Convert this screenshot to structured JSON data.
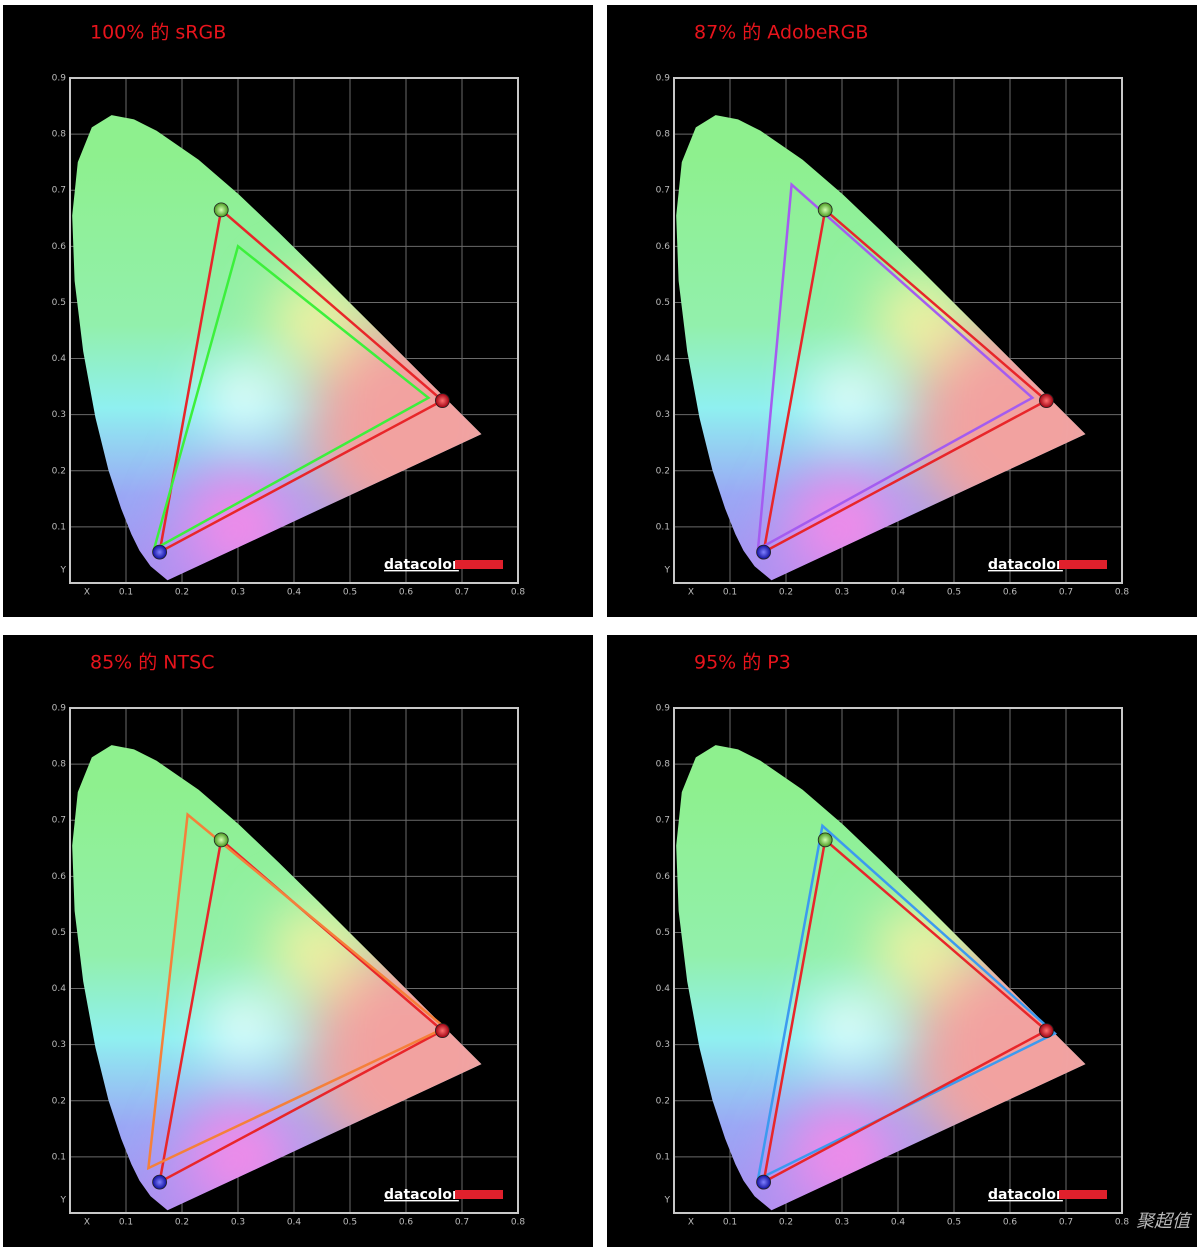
{
  "chart_data": [
    {
      "type": "chromaticity",
      "title": "100% 的 sRGB",
      "xlim": [
        0,
        0.8
      ],
      "ylim": [
        0,
        0.9
      ],
      "xticks": [
        {
          "value": 0,
          "label": "X"
        },
        0.1,
        0.2,
        0.3,
        0.4,
        0.5,
        0.6,
        0.7,
        0.8
      ],
      "yticks": [
        {
          "value": 0,
          "label": "Y"
        },
        0.1,
        0.2,
        0.3,
        0.4,
        0.5,
        0.6,
        0.7,
        0.8,
        0.9
      ],
      "grid": true,
      "brand": "datacolor",
      "series": [
        {
          "color": "#e8262a",
          "x": [
            0.665,
            0.27,
            0.16
          ],
          "y": [
            0.325,
            0.665,
            0.055
          ],
          "markers": true
        },
        {
          "color": "#3cf03c",
          "x": [
            0.64,
            0.3,
            0.15
          ],
          "y": [
            0.33,
            0.6,
            0.06
          ]
        }
      ]
    },
    {
      "type": "chromaticity",
      "title": "87% 的 AdobeRGB",
      "xlim": [
        0,
        0.8
      ],
      "ylim": [
        0,
        0.9
      ],
      "xticks": [
        {
          "value": 0,
          "label": "X"
        },
        0.1,
        0.2,
        0.3,
        0.4,
        0.5,
        0.6,
        0.7,
        0.8
      ],
      "yticks": [
        {
          "value": 0,
          "label": "Y"
        },
        0.1,
        0.2,
        0.3,
        0.4,
        0.5,
        0.6,
        0.7,
        0.8,
        0.9
      ],
      "grid": true,
      "brand": "datacolor",
      "series": [
        {
          "color": "#e8262a",
          "x": [
            0.665,
            0.27,
            0.16
          ],
          "y": [
            0.325,
            0.665,
            0.055
          ],
          "markers": true
        },
        {
          "color": "#a45cf0",
          "x": [
            0.64,
            0.21,
            0.15
          ],
          "y": [
            0.33,
            0.71,
            0.06
          ]
        }
      ]
    },
    {
      "type": "chromaticity",
      "title": "85% 的 NTSC",
      "xlim": [
        0,
        0.8
      ],
      "ylim": [
        0,
        0.9
      ],
      "xticks": [
        {
          "value": 0,
          "label": "X"
        },
        0.1,
        0.2,
        0.3,
        0.4,
        0.5,
        0.6,
        0.7,
        0.8
      ],
      "yticks": [
        {
          "value": 0,
          "label": "Y"
        },
        0.1,
        0.2,
        0.3,
        0.4,
        0.5,
        0.6,
        0.7,
        0.8,
        0.9
      ],
      "grid": true,
      "brand": "datacolor",
      "series": [
        {
          "color": "#e8262a",
          "x": [
            0.665,
            0.27,
            0.16
          ],
          "y": [
            0.325,
            0.665,
            0.055
          ],
          "markers": true
        },
        {
          "color": "#f5803a",
          "x": [
            0.67,
            0.21,
            0.14
          ],
          "y": [
            0.33,
            0.71,
            0.08
          ]
        }
      ]
    },
    {
      "type": "chromaticity",
      "title": "95% 的 P3",
      "xlim": [
        0,
        0.8
      ],
      "ylim": [
        0,
        0.9
      ],
      "xticks": [
        {
          "value": 0,
          "label": "X"
        },
        0.1,
        0.2,
        0.3,
        0.4,
        0.5,
        0.6,
        0.7,
        0.8
      ],
      "yticks": [
        {
          "value": 0,
          "label": "Y"
        },
        0.1,
        0.2,
        0.3,
        0.4,
        0.5,
        0.6,
        0.7,
        0.8,
        0.9
      ],
      "grid": true,
      "brand": "datacolor",
      "series": [
        {
          "color": "#3c9af0",
          "x": [
            0.68,
            0.265,
            0.15
          ],
          "y": [
            0.32,
            0.69,
            0.06
          ]
        },
        {
          "color": "#e8262a",
          "x": [
            0.665,
            0.27,
            0.16
          ],
          "y": [
            0.325,
            0.665,
            0.055
          ],
          "markers": true
        }
      ]
    }
  ],
  "watermark": "聚超值"
}
